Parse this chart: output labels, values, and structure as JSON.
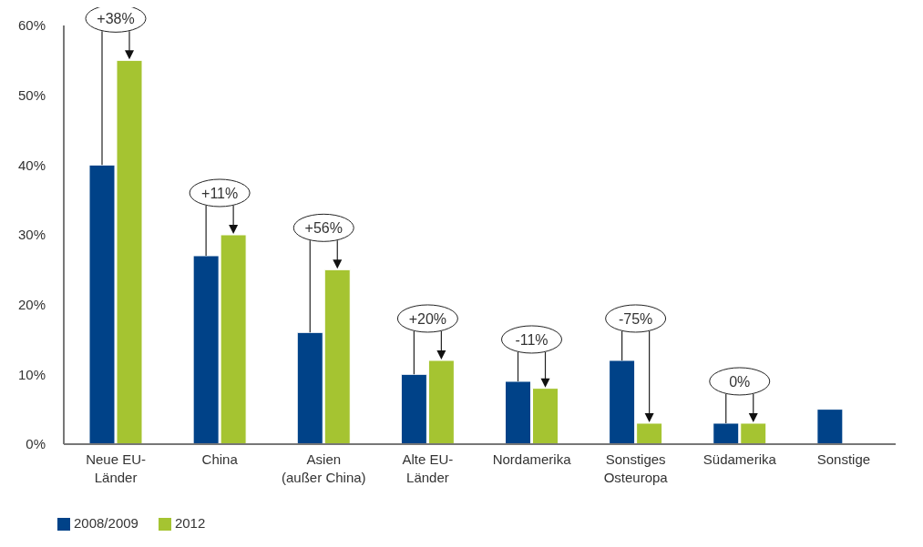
{
  "chart_data": {
    "type": "bar",
    "categories": [
      "Neue EU-Länder",
      "China",
      "Asien (außer China)",
      "Alte EU-Länder",
      "Nordamerika",
      "Sonstiges Osteuropa",
      "Südamerika",
      "Sonstige"
    ],
    "series": [
      {
        "name": "2008/2009",
        "color": "#004288",
        "values": [
          40,
          27,
          16,
          10,
          9,
          12,
          3,
          5
        ]
      },
      {
        "name": "2012",
        "color": "#a5c431",
        "values": [
          55,
          30,
          25,
          12,
          8,
          3,
          3,
          null
        ]
      }
    ],
    "ylim": [
      0,
      60
    ],
    "yticks": [
      {
        "value": 0,
        "label": "0%"
      },
      {
        "value": 10,
        "label": "10%"
      },
      {
        "value": 20,
        "label": "20%"
      },
      {
        "value": 30,
        "label": "30%"
      },
      {
        "value": 40,
        "label": "40%"
      },
      {
        "value": 50,
        "label": "50%"
      },
      {
        "value": 60,
        "label": "60%"
      }
    ],
    "grid": false,
    "legend": "bottom left",
    "annotations": [
      {
        "text": "+38%",
        "x": "Neue EU-Länder",
        "y": 55
      },
      {
        "text": "+11%",
        "x": "China",
        "y": 30
      },
      {
        "text": "+56%",
        "x": "Asien (außer China)",
        "y": 25
      },
      {
        "text": "+20%",
        "x": "Alte EU-Länder",
        "y": 12
      },
      {
        "text": "-11%",
        "x": "Nordamerika",
        "y": 8
      },
      {
        "text": "-75%",
        "x": "Sonstiges Osteuropa",
        "y": 12
      },
      {
        "text": "0%",
        "x": "Südamerika",
        "y": 3
      }
    ]
  }
}
